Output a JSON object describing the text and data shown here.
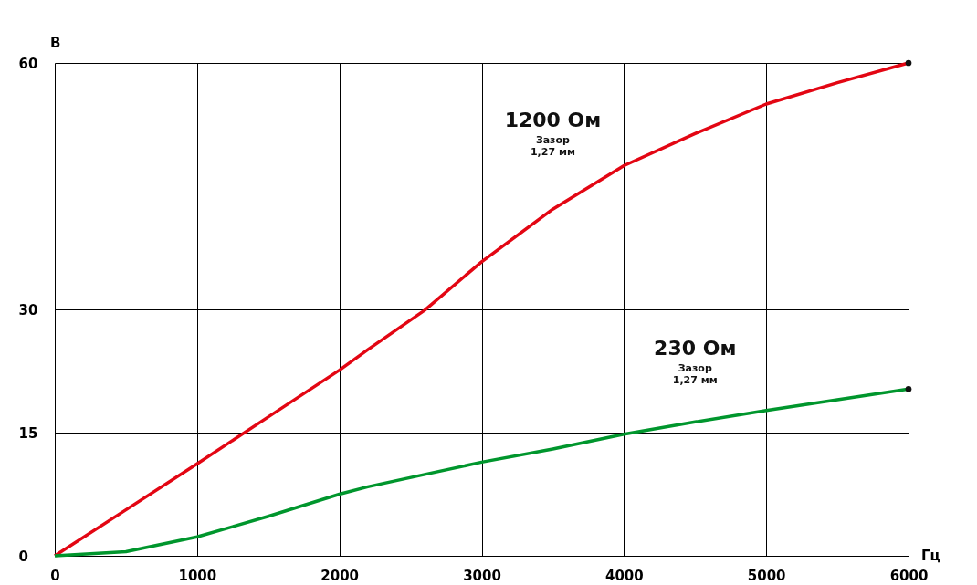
{
  "chart_data": {
    "type": "line",
    "xlabel": "Гц",
    "ylabel": "В",
    "x": [
      0,
      500,
      1000,
      1500,
      2000,
      2200,
      2600,
      3000,
      3500,
      4000,
      4500,
      5000,
      5500,
      6000
    ],
    "series": [
      {
        "name": "1200 Ом",
        "color": "#e30613",
        "values": [
          0,
          5.6,
          11.2,
          16.9,
          22.6,
          25.1,
          29.9,
          35.8,
          42.2,
          47.5,
          51.4,
          55,
          57.6,
          60
        ]
      },
      {
        "name": "230 Ом",
        "color": "#00962d",
        "values": [
          0,
          0.5,
          2.3,
          4.8,
          7.5,
          8.4,
          9.9,
          11.4,
          13,
          14.8,
          16.3,
          17.7,
          19,
          20.3
        ]
      },
      {
        "type": "scatter",
        "color": "#111111",
        "x": [
          6000,
          6000
        ],
        "values": [
          60,
          20.3
        ]
      }
    ],
    "annotations": [
      "Зазор\n1,27 мм",
      "Зазор\n1,27 мм"
    ],
    "xlim": [
      0,
      6000
    ],
    "xticks": [
      0,
      1000,
      2000,
      3000,
      4000,
      5000,
      6000
    ],
    "ylim": [
      0,
      60
    ],
    "yticks": [
      0,
      15,
      30,
      60
    ],
    "grid": true
  }
}
